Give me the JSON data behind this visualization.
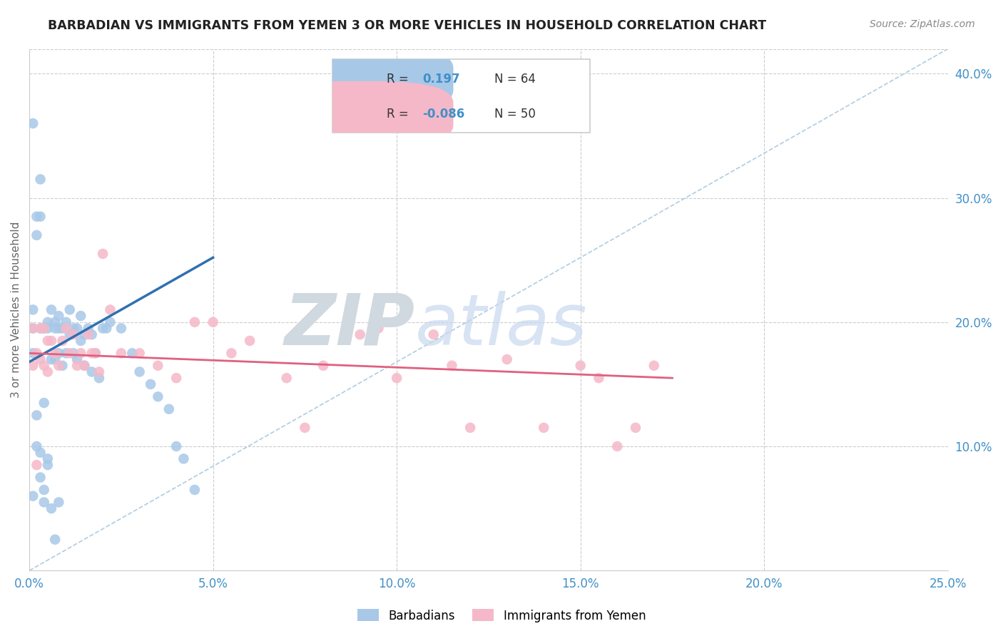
{
  "title": "BARBADIAN VS IMMIGRANTS FROM YEMEN 3 OR MORE VEHICLES IN HOUSEHOLD CORRELATION CHART",
  "source": "Source: ZipAtlas.com",
  "ylabel": "3 or more Vehicles in Household",
  "xlim": [
    0.0,
    0.25
  ],
  "ylim": [
    0.0,
    0.42
  ],
  "xticks": [
    0.0,
    0.05,
    0.1,
    0.15,
    0.2,
    0.25
  ],
  "yticks_right": [
    0.1,
    0.2,
    0.3,
    0.4
  ],
  "ytick_labels_right": [
    "10.0%",
    "20.0%",
    "30.0%",
    "40.0%"
  ],
  "xtick_labels": [
    "0.0%",
    "5.0%",
    "10.0%",
    "15.0%",
    "20.0%",
    "25.0%"
  ],
  "color_blue": "#a8c8e8",
  "color_pink": "#f5b8c8",
  "color_blue_line": "#3070b0",
  "color_pink_line": "#e06080",
  "color_blue_text": "#4090c8",
  "color_ref_line": "#b0cce0",
  "watermark_zip": "ZIP",
  "watermark_atlas": "atlas",
  "legend_text1_r": "0.197",
  "legend_text1_n": "64",
  "legend_text2_r": "-0.086",
  "legend_text2_n": "50",
  "barbadians_x": [
    0.001,
    0.001,
    0.001,
    0.001,
    0.002,
    0.002,
    0.002,
    0.003,
    0.003,
    0.003,
    0.003,
    0.004,
    0.004,
    0.004,
    0.005,
    0.005,
    0.005,
    0.006,
    0.006,
    0.007,
    0.007,
    0.007,
    0.008,
    0.008,
    0.008,
    0.009,
    0.009,
    0.01,
    0.01,
    0.011,
    0.011,
    0.012,
    0.012,
    0.013,
    0.013,
    0.014,
    0.014,
    0.015,
    0.015,
    0.016,
    0.017,
    0.017,
    0.018,
    0.019,
    0.02,
    0.021,
    0.022,
    0.025,
    0.028,
    0.03,
    0.033,
    0.035,
    0.038,
    0.04,
    0.042,
    0.045,
    0.002,
    0.003,
    0.004,
    0.005,
    0.006,
    0.007,
    0.008,
    0.001
  ],
  "barbadians_y": [
    0.195,
    0.21,
    0.175,
    0.06,
    0.27,
    0.285,
    0.1,
    0.315,
    0.285,
    0.195,
    0.075,
    0.195,
    0.135,
    0.065,
    0.2,
    0.195,
    0.085,
    0.21,
    0.17,
    0.2,
    0.195,
    0.17,
    0.205,
    0.195,
    0.175,
    0.195,
    0.165,
    0.2,
    0.175,
    0.21,
    0.19,
    0.195,
    0.175,
    0.195,
    0.17,
    0.205,
    0.185,
    0.19,
    0.165,
    0.195,
    0.19,
    0.16,
    0.175,
    0.155,
    0.195,
    0.195,
    0.2,
    0.195,
    0.175,
    0.16,
    0.15,
    0.14,
    0.13,
    0.1,
    0.09,
    0.065,
    0.125,
    0.095,
    0.055,
    0.09,
    0.05,
    0.025,
    0.055,
    0.36
  ],
  "yemen_x": [
    0.001,
    0.001,
    0.002,
    0.002,
    0.003,
    0.003,
    0.004,
    0.004,
    0.005,
    0.005,
    0.006,
    0.007,
    0.008,
    0.009,
    0.01,
    0.011,
    0.012,
    0.013,
    0.014,
    0.015,
    0.016,
    0.017,
    0.018,
    0.019,
    0.02,
    0.022,
    0.025,
    0.03,
    0.035,
    0.04,
    0.045,
    0.05,
    0.055,
    0.06,
    0.07,
    0.075,
    0.08,
    0.09,
    0.095,
    0.1,
    0.11,
    0.115,
    0.12,
    0.13,
    0.14,
    0.15,
    0.155,
    0.16,
    0.165,
    0.17
  ],
  "yemen_y": [
    0.195,
    0.165,
    0.175,
    0.085,
    0.195,
    0.17,
    0.195,
    0.165,
    0.185,
    0.16,
    0.185,
    0.175,
    0.165,
    0.185,
    0.195,
    0.175,
    0.19,
    0.165,
    0.175,
    0.165,
    0.19,
    0.175,
    0.175,
    0.16,
    0.255,
    0.21,
    0.175,
    0.175,
    0.165,
    0.155,
    0.2,
    0.2,
    0.175,
    0.185,
    0.155,
    0.115,
    0.165,
    0.19,
    0.195,
    0.155,
    0.19,
    0.165,
    0.115,
    0.17,
    0.115,
    0.165,
    0.155,
    0.1,
    0.115,
    0.165
  ],
  "blue_line_x": [
    0.0,
    0.05
  ],
  "blue_line_y": [
    0.168,
    0.252
  ],
  "pink_line_x": [
    0.0,
    0.175
  ],
  "pink_line_y": [
    0.175,
    0.155
  ]
}
